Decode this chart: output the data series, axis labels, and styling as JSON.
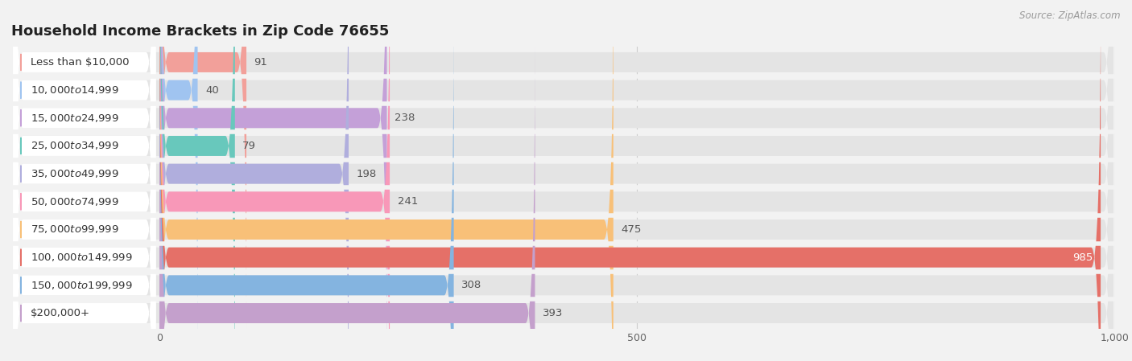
{
  "title": "Household Income Brackets in Zip Code 76655",
  "source": "Source: ZipAtlas.com",
  "categories": [
    "Less than $10,000",
    "$10,000 to $14,999",
    "$15,000 to $24,999",
    "$25,000 to $34,999",
    "$35,000 to $49,999",
    "$50,000 to $74,999",
    "$75,000 to $99,999",
    "$100,000 to $149,999",
    "$150,000 to $199,999",
    "$200,000+"
  ],
  "values": [
    91,
    40,
    238,
    79,
    198,
    241,
    475,
    985,
    308,
    393
  ],
  "colors": [
    "#F2A09A",
    "#A0C4F0",
    "#C4A0D8",
    "#68C8BC",
    "#B0AEDD",
    "#F898B8",
    "#F8C078",
    "#E57068",
    "#84B4E0",
    "#C4A0CC"
  ],
  "max_value": 1000,
  "xticks": [
    0,
    500,
    1000
  ],
  "xtick_labels": [
    "0",
    "500",
    "1,000"
  ],
  "background_color": "#f2f2f2",
  "bar_bg_color": "#e4e4e4",
  "label_bg_color": "#ffffff",
  "title_fontsize": 13,
  "label_fontsize": 9.5,
  "value_fontsize": 9.5,
  "source_fontsize": 8.5
}
